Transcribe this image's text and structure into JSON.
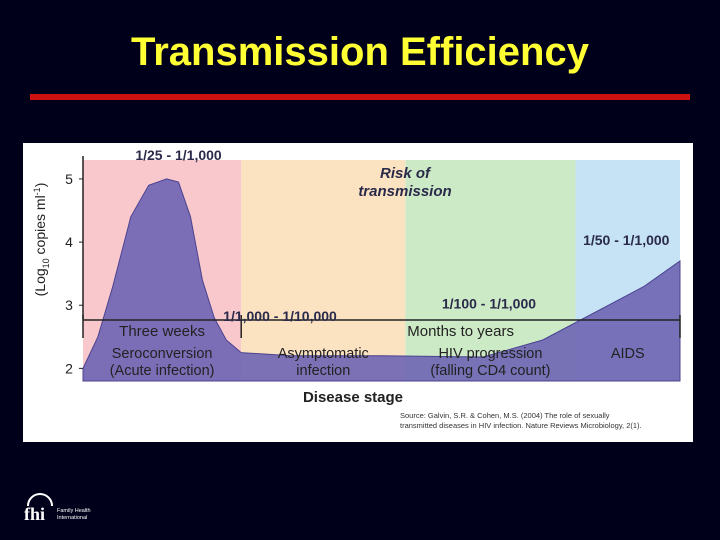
{
  "title": "Transmission Efficiency",
  "colors": {
    "background": "#00001a",
    "title": "#ffff33",
    "rule": "#cc1111",
    "curve_fill": "#6e64b4",
    "stage_seroconversion": "#f9c8cc",
    "stage_asymptomatic": "#fbe3c2",
    "stage_hiv_progression": "#cdeac7",
    "stage_aids": "#c5e3f4"
  },
  "chart_data": {
    "type": "area",
    "ylabel": "(Log10 copies ml-1)",
    "ylabel_parts": {
      "before": "(Log",
      "sub": "10",
      "middle": " copies ml",
      "sup": "-1",
      "after": ")"
    },
    "yticks": [
      2,
      3,
      4,
      5
    ],
    "ylim": [
      1.8,
      5.3
    ],
    "xlabel": "Disease stage",
    "x_domain": [
      0,
      100
    ],
    "stages": [
      {
        "label_line1": "Seroconversion",
        "label_line2": "(Acute infection)",
        "x_start": 0,
        "x_end": 26.5
      },
      {
        "label_line1": "Asymptomatic",
        "label_line2": "infection",
        "x_start": 26.5,
        "x_end": 54
      },
      {
        "label_line1": "HIV progression",
        "label_line2": "(falling CD4 count)",
        "x_start": 54,
        "x_end": 82.5
      },
      {
        "label_line1": "AIDS",
        "label_line2": "",
        "x_start": 82.5,
        "x_end": 100
      }
    ],
    "time_axis": [
      {
        "label": "Three weeks",
        "x_start": 0,
        "x_end": 26.5
      },
      {
        "label": "Months to years",
        "x_start": 26.5,
        "x_end": 100
      }
    ],
    "series": [
      {
        "points": [
          [
            0,
            2.0
          ],
          [
            2.5,
            2.5
          ],
          [
            5,
            3.3
          ],
          [
            8,
            4.4
          ],
          [
            11,
            4.9
          ],
          [
            14,
            5.0
          ],
          [
            16,
            4.95
          ],
          [
            18,
            4.4
          ],
          [
            20,
            3.4
          ],
          [
            22,
            2.8
          ],
          [
            24,
            2.45
          ],
          [
            26.5,
            2.25
          ],
          [
            35,
            2.2
          ],
          [
            50,
            2.2
          ],
          [
            67,
            2.18
          ],
          [
            77,
            2.45
          ],
          [
            87,
            2.95
          ],
          [
            94,
            3.3
          ],
          [
            100,
            3.7
          ]
        ]
      }
    ],
    "annotations": [
      {
        "text": "1/25 - 1/1,000",
        "x": 16,
        "y": 5.3
      },
      {
        "text": "1/1,000 - 1/10,000",
        "x": 33,
        "y": 2.75
      },
      {
        "text": "1/100 - 1/1,000",
        "x": 68,
        "y": 2.95
      },
      {
        "text": "1/50 - 1/1,000",
        "x": 91,
        "y": 3.95
      }
    ],
    "risk_label_line1": "Risk of",
    "risk_label_line2": "transmission",
    "source_line1": "Source: Galvin, S.R. & Cohen, M.S. (2004) The role of sexually",
    "source_line2": "transmitted diseases in HIV infection.  Nature Reviews Microbiology, 2(1)."
  },
  "logo": {
    "mark": "fhi",
    "line1": "Family Health",
    "line2": "International"
  }
}
